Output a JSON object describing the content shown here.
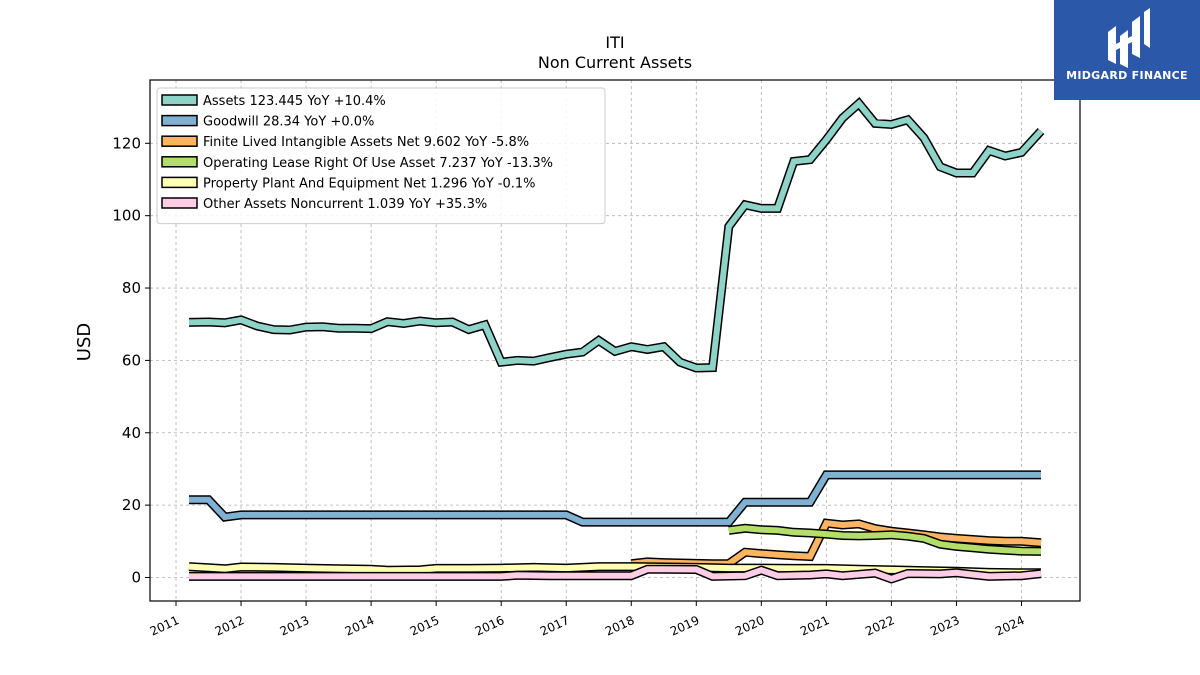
{
  "logo": {
    "text": "MIDGARD FINANCE",
    "color": "#2b58a8"
  },
  "chart_data": {
    "type": "line",
    "title": "ITI",
    "subtitle": "Non Current  Assets",
    "ylabel": "USD",
    "xlabel": "",
    "ylim": [
      -6.5,
      137.5
    ],
    "xlim": [
      2010.6,
      2024.9
    ],
    "yticks": [
      0,
      20,
      40,
      60,
      80,
      100,
      120
    ],
    "xticks": [
      "2011",
      "2012",
      "2013",
      "2014",
      "2015",
      "2016",
      "2017",
      "2018",
      "2019",
      "2020",
      "2021",
      "2022",
      "2023",
      "2024"
    ],
    "grid": true,
    "legend_position": "top-left",
    "series": [
      {
        "name": "Assets",
        "legend": "Assets  123.445 YoY +10.4%",
        "color": "#8dd3c7",
        "x": [
          2011.2,
          2011.5,
          2011.75,
          2012.0,
          2012.25,
          2012.5,
          2012.75,
          2013.0,
          2013.25,
          2013.5,
          2013.75,
          2014.0,
          2014.25,
          2014.5,
          2014.75,
          2015.0,
          2015.25,
          2015.5,
          2015.75,
          2016.0,
          2016.25,
          2016.5,
          2016.75,
          2017.0,
          2017.25,
          2017.5,
          2017.75,
          2018.0,
          2018.25,
          2018.5,
          2018.75,
          2019.0,
          2019.25,
          2019.5,
          2019.75,
          2020.0,
          2020.25,
          2020.5,
          2020.75,
          2021.0,
          2021.25,
          2021.5,
          2021.75,
          2022.0,
          2022.25,
          2022.5,
          2022.75,
          2023.0,
          2023.25,
          2023.5,
          2023.75,
          2024.0,
          2024.3
        ],
        "values": [
          70.5,
          70.6,
          70.4,
          71.2,
          69.5,
          68.5,
          68.4,
          69.2,
          69.3,
          68.9,
          68.9,
          68.8,
          70.7,
          70.2,
          70.9,
          70.4,
          70.6,
          68.5,
          69.8,
          59.5,
          60.0,
          59.8,
          60.8,
          61.7,
          62.3,
          65.5,
          62.5,
          63.8,
          63.0,
          63.8,
          59.5,
          57.9,
          58.0,
          97.0,
          103.0,
          102.0,
          102.0,
          115.0,
          115.5,
          121.0,
          127.0,
          131.0,
          125.5,
          125.2,
          126.5,
          121.5,
          113.5,
          111.8,
          111.8,
          118.0,
          116.5,
          117.5,
          123.4
        ]
      },
      {
        "name": "Goodwill",
        "legend": "Goodwill  28.34 YoY +0.0%",
        "color": "#80b1d3",
        "x": [
          2011.2,
          2011.5,
          2011.75,
          2012.0,
          2017.0,
          2017.25,
          2019.5,
          2019.75,
          2020.75,
          2021.0,
          2024.3
        ],
        "values": [
          21.5,
          21.5,
          16.7,
          17.3,
          17.3,
          15.3,
          15.3,
          20.8,
          20.8,
          28.34,
          28.34
        ]
      },
      {
        "name": "Finite Lived Intangible Assets Net",
        "legend": "Finite Lived Intangible Assets Net  9.602 YoY -5.8%",
        "color": "#fdb462",
        "x": [
          2018.0,
          2018.25,
          2018.5,
          2018.75,
          2019.0,
          2019.25,
          2019.5,
          2019.75,
          2020.0,
          2020.25,
          2020.5,
          2020.75,
          2021.0,
          2021.25,
          2021.5,
          2021.75,
          2022.0,
          2022.25,
          2022.5,
          2022.75,
          2023.0,
          2023.25,
          2023.5,
          2023.75,
          2024.0,
          2024.3
        ],
        "values": [
          3.8,
          4.3,
          4.1,
          4.0,
          3.9,
          3.8,
          3.8,
          7.0,
          6.6,
          6.3,
          6.0,
          5.8,
          15.0,
          14.5,
          14.8,
          13.5,
          12.8,
          12.3,
          11.8,
          11.2,
          10.8,
          10.5,
          10.2,
          10.0,
          10.0,
          9.6
        ]
      },
      {
        "name": "Operating Lease Right Of Use Asset",
        "legend": "Operating Lease Right Of Use Asset  7.237 YoY -13.3%",
        "color": "#b3de69",
        "x": [
          2019.5,
          2019.75,
          2020.0,
          2020.25,
          2020.5,
          2020.75,
          2021.0,
          2021.25,
          2021.5,
          2021.75,
          2022.0,
          2022.25,
          2022.5,
          2022.75,
          2023.0,
          2023.25,
          2023.5,
          2023.75,
          2024.0,
          2024.3
        ],
        "values": [
          13.0,
          13.6,
          13.2,
          13.0,
          12.5,
          12.3,
          12.0,
          11.6,
          11.5,
          11.6,
          11.8,
          11.4,
          10.8,
          9.2,
          8.6,
          8.2,
          7.8,
          7.5,
          7.3,
          7.2
        ]
      },
      {
        "name": "Property Plant And Equipment Net",
        "legend": "Property Plant And Equipment Net  1.296 YoY -0.1%",
        "color": "#ffffb3",
        "x": [
          2011.2,
          2011.5,
          2011.75,
          2012.0,
          2012.5,
          2013.0,
          2013.5,
          2014.0,
          2014.25,
          2014.75,
          2015.0,
          2015.5,
          2016.0,
          2016.5,
          2017.0,
          2017.5,
          2018.0,
          2018.5,
          2019.0,
          2019.5,
          2020.0,
          2020.5,
          2021.0,
          2021.5,
          2022.0,
          2022.5,
          2023.0,
          2023.5,
          2024.0,
          2024.3
        ],
        "values": [
          3.0,
          2.7,
          2.4,
          2.9,
          2.8,
          2.6,
          2.4,
          2.3,
          2.0,
          2.1,
          2.5,
          2.5,
          2.6,
          2.8,
          2.6,
          3.0,
          3.0,
          2.9,
          2.8,
          2.6,
          2.6,
          2.5,
          2.5,
          2.3,
          2.1,
          1.9,
          1.7,
          1.4,
          1.3,
          1.3
        ]
      },
      {
        "name": "Other Assets Noncurrent",
        "legend": "Other Assets Noncurrent  1.039 YoY +35.3%",
        "color": "#fccde5",
        "x": [
          2011.2,
          2011.75,
          2012.0,
          2013.0,
          2014.0,
          2015.0,
          2015.75,
          2016.0,
          2016.25,
          2016.75,
          2017.0,
          2017.5,
          2017.75,
          2018.0,
          2018.25,
          2018.5,
          2019.0,
          2019.25,
          2019.75,
          2020.0,
          2020.25,
          2020.75,
          2021.0,
          2021.25,
          2021.75,
          2022.0,
          2022.25,
          2022.75,
          2023.0,
          2023.25,
          2023.5,
          2024.0,
          2024.3
        ],
        "values": [
          0.3,
          0.3,
          0.3,
          0.3,
          0.3,
          0.3,
          0.3,
          0.3,
          0.6,
          0.5,
          0.5,
          0.5,
          0.5,
          0.5,
          2.3,
          2.3,
          2.2,
          0.3,
          0.5,
          2.0,
          0.5,
          0.7,
          1.0,
          0.5,
          1.2,
          -0.4,
          1.1,
          1.0,
          1.3,
          0.8,
          0.3,
          0.5,
          1.04
        ]
      }
    ]
  }
}
